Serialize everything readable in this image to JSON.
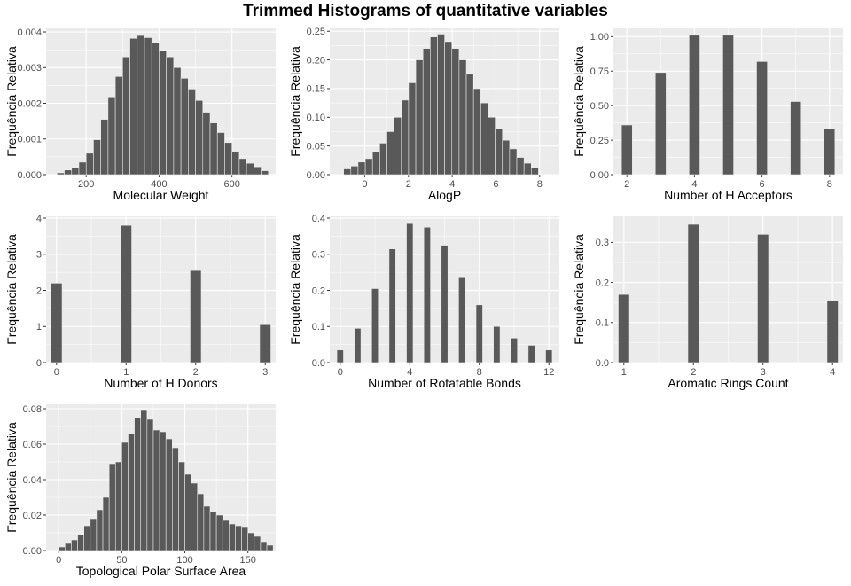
{
  "title": "Trimmed Histograms of quantitative variables",
  "colors": {
    "bar": "#595959",
    "panel_bg": "#EBEBEB",
    "grid": "#FFFFFF",
    "tick_text": "#4D4D4D",
    "label_text": "#000000"
  },
  "chart_data": [
    {
      "type": "bar",
      "xlabel": "Molecular Weight",
      "ylabel": "Frequência Relativa",
      "xlim": [
        90,
        720
      ],
      "ylim": [
        0,
        0.0041
      ],
      "xticks": [
        200,
        400,
        600
      ],
      "yticks": [
        0.0,
        0.001,
        0.002,
        0.003,
        0.004
      ],
      "ytick_labels": [
        "0.000",
        "0.001",
        "0.002",
        "0.003",
        "0.004"
      ],
      "bin_width": 20,
      "x": [
        130,
        150,
        170,
        190,
        210,
        230,
        250,
        270,
        290,
        310,
        330,
        350,
        370,
        390,
        410,
        430,
        450,
        470,
        490,
        510,
        530,
        550,
        570,
        590,
        610,
        630,
        650,
        670,
        690
      ],
      "values": [
        5e-05,
        0.00013,
        0.00019,
        0.00035,
        0.0006,
        0.00098,
        0.00155,
        0.00218,
        0.00275,
        0.0033,
        0.00382,
        0.0039,
        0.00384,
        0.0037,
        0.00348,
        0.0033,
        0.003,
        0.0027,
        0.0024,
        0.00208,
        0.00175,
        0.00145,
        0.00118,
        0.0009,
        0.00065,
        0.00045,
        0.00032,
        0.00022,
        0.00011
      ]
    },
    {
      "type": "bar",
      "xlabel": "AlogP",
      "ylabel": "Frequência Relativa",
      "xlim": [
        -1.6,
        8.9
      ],
      "ylim": [
        0,
        0.255
      ],
      "xticks": [
        0,
        2,
        4,
        6,
        8
      ],
      "yticks": [
        0.0,
        0.05,
        0.1,
        0.15,
        0.2,
        0.25
      ],
      "ytick_labels": [
        "0.00",
        "0.05",
        "0.10",
        "0.15",
        "0.20",
        "0.25"
      ],
      "bin_width": 0.33,
      "x": [
        -0.8,
        -0.47,
        -0.14,
        0.19,
        0.52,
        0.85,
        1.18,
        1.51,
        1.84,
        2.17,
        2.5,
        2.83,
        3.16,
        3.49,
        3.82,
        4.15,
        4.48,
        4.81,
        5.14,
        5.47,
        5.8,
        6.13,
        6.46,
        6.79,
        7.12,
        7.45,
        7.78
      ],
      "values": [
        0.01,
        0.015,
        0.022,
        0.028,
        0.04,
        0.055,
        0.075,
        0.1,
        0.13,
        0.16,
        0.2,
        0.22,
        0.24,
        0.245,
        0.232,
        0.22,
        0.2,
        0.175,
        0.15,
        0.125,
        0.1,
        0.08,
        0.06,
        0.045,
        0.03,
        0.02,
        0.012
      ]
    },
    {
      "type": "bar",
      "xlabel": "Number of H Acceptors",
      "ylabel": "Frequência Relativa",
      "xlim": [
        1.6,
        8.4
      ],
      "ylim": [
        0,
        1.06
      ],
      "xticks": [
        2,
        4,
        6,
        8
      ],
      "yticks": [
        0.0,
        0.25,
        0.5,
        0.75,
        1.0
      ],
      "ytick_labels": [
        "0.00",
        "0.25",
        "0.50",
        "0.75",
        "1.00"
      ],
      "bin_width": 0.32,
      "x": [
        2,
        3,
        4,
        5,
        6,
        7,
        8
      ],
      "values": [
        0.36,
        0.74,
        1.01,
        1.01,
        0.82,
        0.53,
        0.33
      ]
    },
    {
      "type": "bar",
      "xlabel": "Number of H Donors",
      "ylabel": "Frequência Relativa",
      "xlim": [
        -0.15,
        3.15
      ],
      "ylim": [
        0,
        4.05
      ],
      "xticks": [
        0,
        1,
        2,
        3
      ],
      "yticks": [
        0,
        1,
        2,
        3,
        4
      ],
      "ytick_labels": [
        "0",
        "1",
        "2",
        "3",
        "4"
      ],
      "bin_width": 0.16,
      "x": [
        0,
        1,
        2,
        3
      ],
      "values": [
        2.2,
        3.8,
        2.55,
        1.05
      ]
    },
    {
      "type": "bar",
      "xlabel": "Number of Rotatable Bonds",
      "ylabel": "Frequência Relativa",
      "xlim": [
        -0.6,
        12.6
      ],
      "ylim": [
        0,
        0.405
      ],
      "xticks": [
        0,
        4,
        8,
        12
      ],
      "yticks": [
        0.0,
        0.1,
        0.2,
        0.3,
        0.4
      ],
      "ytick_labels": [
        "0.0",
        "0.1",
        "0.2",
        "0.3",
        "0.4"
      ],
      "bin_width": 0.38,
      "x": [
        0,
        1,
        2,
        3,
        4,
        5,
        6,
        7,
        8,
        9,
        10,
        11,
        12
      ],
      "values": [
        0.035,
        0.095,
        0.205,
        0.315,
        0.385,
        0.375,
        0.325,
        0.235,
        0.16,
        0.1,
        0.068,
        0.048,
        0.035
      ]
    },
    {
      "type": "bar",
      "xlabel": "Aromatic Rings Count",
      "ylabel": "Frequência Relativa",
      "xlim": [
        0.85,
        4.15
      ],
      "ylim": [
        0,
        0.365
      ],
      "xticks": [
        1,
        2,
        3,
        4
      ],
      "yticks": [
        0.0,
        0.1,
        0.2,
        0.3
      ],
      "ytick_labels": [
        "0.0",
        "0.1",
        "0.2",
        "0.3"
      ],
      "bin_width": 0.16,
      "x": [
        1,
        2,
        3,
        4
      ],
      "values": [
        0.17,
        0.345,
        0.32,
        0.155
      ]
    },
    {
      "type": "bar",
      "xlabel": "Topological Polar Surface Area",
      "ylabel": "Frequência Relativa",
      "xlim": [
        -10,
        172
      ],
      "ylim": [
        0,
        0.0825
      ],
      "xticks": [
        0,
        50,
        100,
        150
      ],
      "yticks": [
        0.0,
        0.02,
        0.04,
        0.06,
        0.08
      ],
      "ytick_labels": [
        "0.00",
        "0.02",
        "0.04",
        "0.06",
        "0.08"
      ],
      "bin_width": 5,
      "x": [
        2.5,
        7.5,
        12.5,
        17.5,
        22.5,
        27.5,
        32.5,
        37.5,
        42.5,
        47.5,
        52.5,
        57.5,
        62.5,
        67.5,
        72.5,
        77.5,
        82.5,
        87.5,
        92.5,
        97.5,
        102.5,
        107.5,
        112.5,
        117.5,
        122.5,
        127.5,
        132.5,
        137.5,
        142.5,
        147.5,
        152.5,
        157.5,
        162.5,
        167.5
      ],
      "values": [
        0.002,
        0.004,
        0.006,
        0.009,
        0.014,
        0.018,
        0.023,
        0.03,
        0.049,
        0.05,
        0.061,
        0.066,
        0.075,
        0.079,
        0.074,
        0.068,
        0.067,
        0.063,
        0.058,
        0.05,
        0.043,
        0.038,
        0.032,
        0.025,
        0.022,
        0.02,
        0.017,
        0.015,
        0.014,
        0.013,
        0.01,
        0.008,
        0.005,
        0.003
      ]
    }
  ]
}
